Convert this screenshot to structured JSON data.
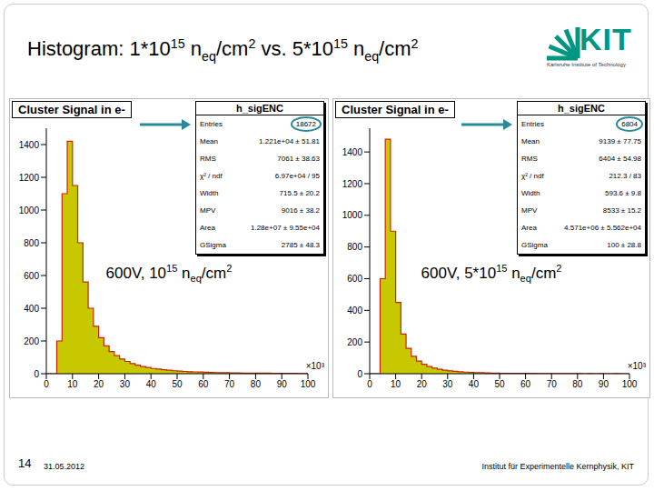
{
  "slide": {
    "title": [
      {
        "text": "Histogram: 1*10"
      },
      {
        "sup": "15"
      },
      {
        "text": " n"
      },
      {
        "sub": "eq"
      },
      {
        "text": "/cm"
      },
      {
        "sup": "2"
      },
      {
        "text": " vs. 5*10"
      },
      {
        "sup": "15"
      },
      {
        "text": " n"
      },
      {
        "sub": "eq"
      },
      {
        "text": "/cm"
      },
      {
        "sup": "2"
      }
    ],
    "logo": "KIT",
    "logo_subtitle": "Karlsruhe Institute of Technology",
    "page": "14",
    "date": "31.05.2012",
    "institute": "Institut für Experimentelle Kernphysik, KIT"
  },
  "chart_data": [
    {
      "type": "histogram",
      "title": "Cluster Signal in e-",
      "stats_title": "h_sigENC",
      "stats": [
        [
          "Entries",
          "18672"
        ],
        [
          "Mean",
          "1.221e+04 ± 51.81"
        ],
        [
          "RMS",
          "7061 ± 38.63"
        ],
        [
          "χ² / ndf",
          "6.97e+04 / 95"
        ],
        [
          "Width",
          "715.5 ± 20.2"
        ],
        [
          "MPV",
          "9016 ± 38.2"
        ],
        [
          "Area",
          "1.28e+07 ± 9.55e+04"
        ],
        [
          "GSigma",
          "2785 ± 48.3"
        ]
      ],
      "annotation": [
        {
          "text": "600V, 10"
        },
        {
          "sup": "15"
        },
        {
          "text": " n"
        },
        {
          "sub": "eq"
        },
        {
          "text": "/cm"
        },
        {
          "sup": "2"
        }
      ],
      "xlabel": "×10³",
      "color": "#c8c800",
      "bins": [
        0,
        2,
        4,
        6,
        8,
        10,
        12,
        14,
        16,
        18,
        20,
        22,
        24,
        26,
        28,
        30,
        32,
        34,
        36,
        38,
        40,
        42,
        44,
        46,
        48,
        50,
        52,
        54,
        56,
        58,
        60,
        62,
        64,
        66,
        68,
        70,
        72,
        74,
        76,
        78,
        80,
        82,
        84,
        86,
        88,
        90,
        92,
        94,
        96,
        98,
        100
      ],
      "counts": [
        0,
        0,
        200,
        1100,
        1420,
        1150,
        800,
        560,
        400,
        290,
        220,
        170,
        135,
        110,
        90,
        75,
        62,
        52,
        44,
        38,
        32,
        28,
        24,
        21,
        18,
        16,
        14,
        12,
        11,
        10,
        9,
        8,
        7,
        6,
        6,
        5,
        5,
        4,
        4,
        4,
        3,
        3,
        3,
        2,
        2,
        2,
        2,
        2,
        1,
        1
      ],
      "xlim": [
        0,
        100
      ],
      "xticks": [
        0,
        10,
        20,
        30,
        40,
        50,
        60,
        70,
        80,
        90,
        100
      ],
      "ylim": [
        0,
        1500
      ],
      "yticks": [
        0,
        200,
        400,
        600,
        800,
        1000,
        1200,
        1400
      ],
      "grid": false
    },
    {
      "type": "histogram",
      "title": "Cluster Signal in e-",
      "stats_title": "h_sigENC",
      "stats": [
        [
          "Entries",
          "6804"
        ],
        [
          "Mean",
          "9139 ± 77.75"
        ],
        [
          "RMS",
          "6404 ± 54.98"
        ],
        [
          "χ² / ndf",
          "212.3 / 83"
        ],
        [
          "Width",
          "593.6 ± 9.8"
        ],
        [
          "MPV",
          "8533 ± 15.2"
        ],
        [
          "Area",
          "4.571e+06 ± 5.562e+04"
        ],
        [
          "GSigma",
          "100 ± 28.8"
        ]
      ],
      "annotation": [
        {
          "text": "600V, 5*10"
        },
        {
          "sup": "15"
        },
        {
          "text": " n"
        },
        {
          "sub": "eq"
        },
        {
          "text": "/cm"
        },
        {
          "sup": "2"
        }
      ],
      "xlabel": "×10³",
      "color": "#c8c800",
      "bins": [
        0,
        2,
        4,
        6,
        8,
        10,
        12,
        14,
        16,
        18,
        20,
        22,
        24,
        26,
        28,
        30,
        32,
        34,
        36,
        38,
        40,
        42,
        44,
        46,
        48,
        50,
        52,
        54,
        56,
        58,
        60,
        62,
        64,
        66,
        68,
        70,
        72,
        74,
        76,
        78,
        80,
        82,
        84,
        86,
        88,
        90,
        92,
        94,
        96,
        98,
        100
      ],
      "counts": [
        0,
        0,
        600,
        1480,
        900,
        450,
        250,
        160,
        110,
        80,
        60,
        45,
        35,
        28,
        22,
        18,
        15,
        12,
        10,
        8,
        7,
        6,
        5,
        4,
        4,
        3,
        3,
        3,
        2,
        2,
        2,
        2,
        1,
        1,
        1,
        1,
        1,
        1,
        1,
        1,
        1,
        0,
        1,
        0,
        1,
        0,
        0,
        1,
        0,
        0
      ],
      "xlim": [
        0,
        100
      ],
      "xticks": [
        0,
        10,
        20,
        30,
        40,
        50,
        60,
        70,
        80,
        90,
        100
      ],
      "ylim": [
        0,
        1550
      ],
      "yticks": [
        0,
        200,
        400,
        600,
        800,
        1000,
        1200,
        1400
      ],
      "grid": false
    }
  ]
}
